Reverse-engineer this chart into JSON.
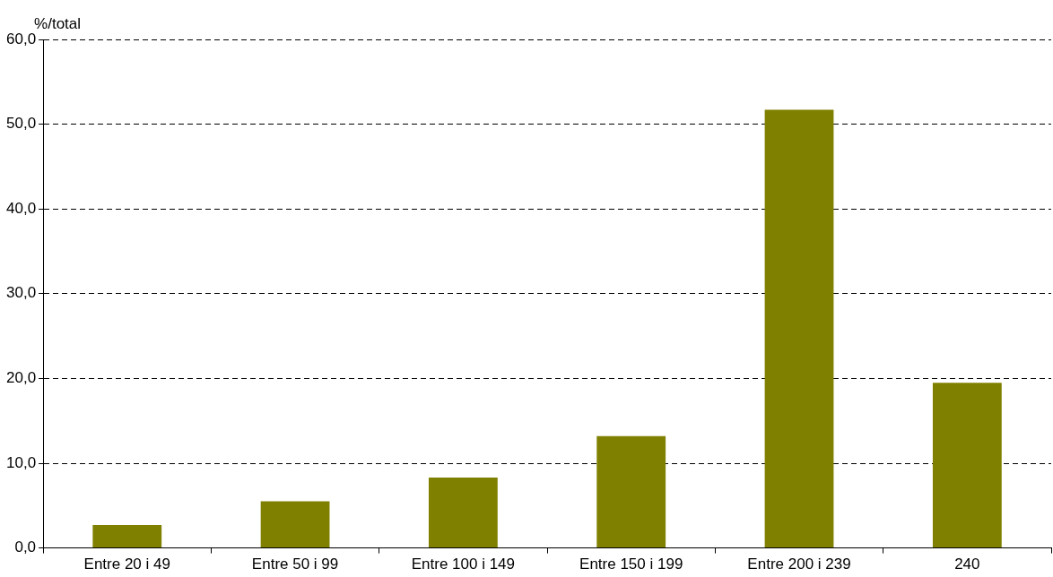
{
  "chart_data": {
    "type": "bar",
    "ylabel": "%/total",
    "categories": [
      "Entre 20 i 49",
      "Entre 50 i 99",
      "Entre 100 i 149",
      "Entre 150 i 199",
      "Entre 200 i 239",
      "240"
    ],
    "values": [
      2.7,
      5.5,
      8.3,
      13.2,
      51.7,
      19.5
    ],
    "color": "#808000",
    "ylim": [
      0,
      60
    ],
    "yticks": [
      {
        "value": 0,
        "label": "0,0"
      },
      {
        "value": 10,
        "label": "10,0"
      },
      {
        "value": 20,
        "label": "20,0"
      },
      {
        "value": 30,
        "label": "30,0"
      },
      {
        "value": 40,
        "label": "40,0"
      },
      {
        "value": 50,
        "label": "50,0"
      },
      {
        "value": 60,
        "label": "60,0"
      }
    ],
    "grid": "y",
    "legend": false
  }
}
